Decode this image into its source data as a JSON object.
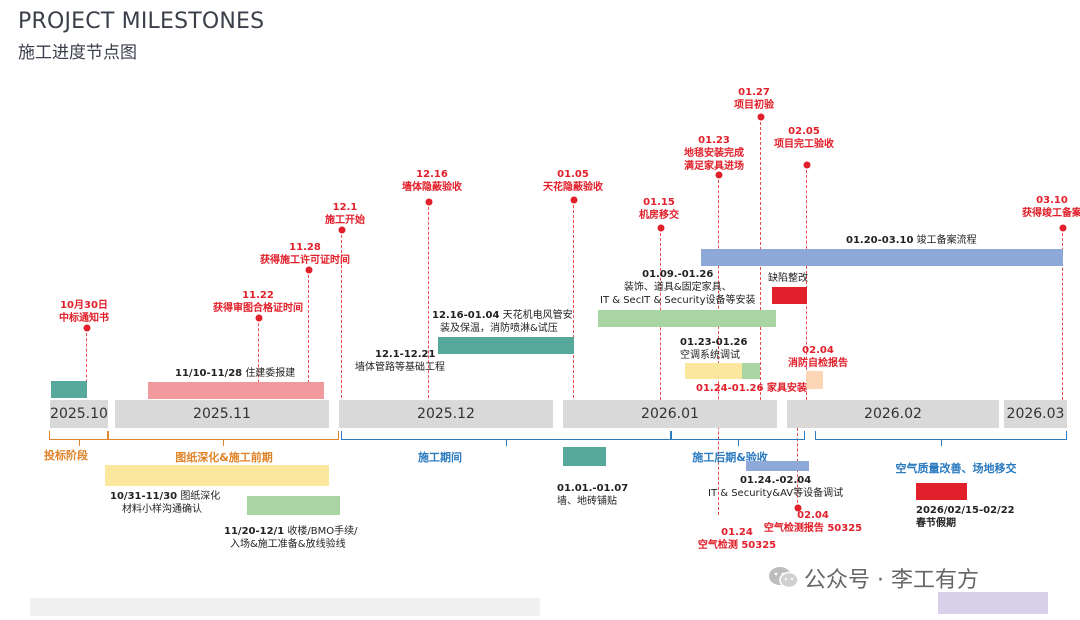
{
  "header": {
    "title": "PROJECT MILESTONES",
    "subtitle": "施工进度节点图"
  },
  "months": [
    "2025.10",
    "2025.11",
    "2025.12",
    "2026.01",
    "2026.02",
    "2026.03"
  ],
  "milestones": [
    {
      "date": "10月30日",
      "label": "中标通知书"
    },
    {
      "date": "11.22",
      "label": "获得审图合格证时间"
    },
    {
      "date": "11.28",
      "label": "获得施工许可证时间"
    },
    {
      "date": "12.1",
      "label": "施工开始"
    },
    {
      "date": "12.16",
      "label": "墙体隐蔽验收"
    },
    {
      "date": "01.05",
      "label": "天花隐蔽验收"
    },
    {
      "date": "01.15",
      "label": "机房移交"
    },
    {
      "date": "01.23",
      "label1": "地毯安装完成",
      "label2": "满足家具进场"
    },
    {
      "date": "01.27",
      "label": "项目初验"
    },
    {
      "date": "02.05",
      "label": "项目完工验收"
    },
    {
      "date": "03.10",
      "label": "获得竣工备案"
    },
    {
      "date": "02.04",
      "label": "消防自检报告"
    },
    {
      "date": "01.24",
      "label": "空气检测 50325"
    },
    {
      "date": "02.04",
      "label": "空气检测报告 50325"
    }
  ],
  "tasks": {
    "t1110": {
      "range": "11/10-11/28",
      "label": "住建委报建"
    },
    "t1216": {
      "range": "12.16-01.04",
      "label1": "天花机电风管安",
      "label2": "装及保温，消防喷淋&试压"
    },
    "t1201": {
      "range": "12.1-12.21",
      "label": "墙体管路等基础工程"
    },
    "t0109": {
      "range": "01.09.-01.26",
      "label1": "装饰、道具&固定家具、",
      "label2": "IT & SecIT & Security设备等安装"
    },
    "t0123": {
      "range": "01.23-01.26",
      "label": "空调系统调试"
    },
    "t0124": {
      "range": "01.24-01.26",
      "label": "家具安装"
    },
    "t0120": {
      "range": "01.20-03.10",
      "label": "竣工备案流程"
    },
    "defect": {
      "label": "缺陷整改"
    },
    "t1031": {
      "range": "10/31-11/30",
      "label1": "图纸深化",
      "label2": "材料小样沟通确认"
    },
    "t1120": {
      "range": "11/20-12/1",
      "label1": "收楼/BMO手续/",
      "label2": "入场&施工准备&放线验线"
    },
    "t0101": {
      "range": "01.01.-01.07",
      "label": "墙、地砖铺贴"
    },
    "t0124b": {
      "range": "01.24.-02.04",
      "label": "IT & Security&AV等设备调试"
    },
    "holiday": {
      "range": "2026/02/15-02/22",
      "label": "春节假期"
    }
  },
  "phases": {
    "bid": "投标阶段",
    "design": "图纸深化&施工前期",
    "construction": "施工期间",
    "late": "施工后期&验收",
    "air": "空气质量改善、场地移交"
  },
  "watermark": "公众号 · 李工有方",
  "colors": {
    "red": "#e1202b",
    "teal": "#55a89a",
    "pink": "#f19a9e",
    "yellow": "#fbe79e",
    "green": "#a9d4a4",
    "blue": "#8ea9d8",
    "gray": "#d9d9d9",
    "orange": "#e0842a",
    "peach": "#fbd7b6",
    "phaseBlue": "#2a7ac0"
  }
}
